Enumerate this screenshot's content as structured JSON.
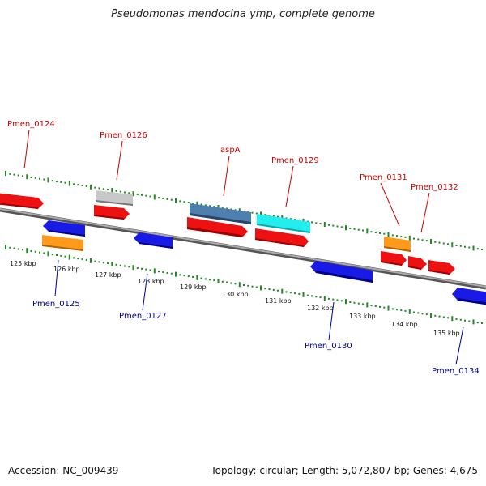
{
  "title": "Pseudomonas mendocina ymp, complete genome",
  "footer": {
    "accession": "Accession: NC_009439",
    "summary": "Topology: circular; Length: 5,072,807 bp; Genes: 4,675"
  },
  "colors": {
    "red": "#ee1111",
    "blue": "#1a1ae6",
    "orange": "#ff9a1a",
    "gray": "#c0c0c0",
    "steel": "#4f7fae",
    "cyan": "#22eeee",
    "tick_green": "#1f8a1f",
    "top_label": "#cc0000",
    "bottom_label": "#00009a",
    "backbone": "#888888"
  },
  "axis": {
    "ticks": [
      {
        "label": "125 kbp"
      },
      {
        "label": "126 kbp"
      },
      {
        "label": "127 kbp"
      },
      {
        "label": "128 kbp"
      },
      {
        "label": "129 kbp"
      },
      {
        "label": "130 kbp"
      },
      {
        "label": "131 kbp"
      },
      {
        "label": "132 kbp"
      },
      {
        "label": "133 kbp"
      },
      {
        "label": "134 kbp"
      },
      {
        "label": "135 kbp"
      }
    ]
  },
  "top_labels": [
    {
      "text": "Pmen_0124"
    },
    {
      "text": "Pmen_0126"
    },
    {
      "text": "aspA"
    },
    {
      "text": "Pmen_0129"
    },
    {
      "text": "Pmen_0131"
    },
    {
      "text": "Pmen_0132"
    }
  ],
  "bottom_labels": [
    {
      "text": "Pmen_0125"
    },
    {
      "text": "Pmen_0127"
    },
    {
      "text": "Pmen_0130"
    },
    {
      "text": "Pmen_0134"
    }
  ]
}
